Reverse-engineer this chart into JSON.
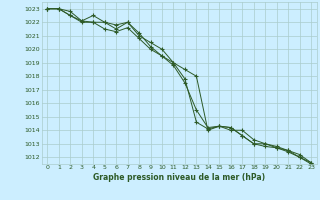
{
  "xlabel": "Graphe pression niveau de la mer (hPa)",
  "x": [
    0,
    1,
    2,
    3,
    4,
    5,
    6,
    7,
    8,
    9,
    10,
    11,
    12,
    13,
    14,
    15,
    16,
    17,
    18,
    19,
    20,
    21,
    22,
    23
  ],
  "line1": [
    1023,
    1023,
    1022.5,
    1022,
    1022,
    1022,
    1021.5,
    1022,
    1021,
    1020.5,
    1020,
    1019,
    1018.5,
    1018,
    1014,
    1014.3,
    1014,
    1014,
    1013.3,
    1013,
    1012.7,
    1012.5,
    1012.2,
    1011.6
  ],
  "line2": [
    1023,
    1023,
    1022.5,
    1022.1,
    1022.5,
    1022,
    1021.8,
    1022,
    1021.2,
    1020.2,
    1019.5,
    1018.8,
    1017.5,
    1015.5,
    1014.2,
    1014.3,
    1014.2,
    1013.6,
    1013,
    1012.8,
    1012.7,
    1012.4,
    1012,
    1011.6
  ],
  "line3": [
    1023,
    1023,
    1022.8,
    1022.1,
    1022,
    1021.5,
    1021.3,
    1021.6,
    1020.8,
    1020,
    1019.5,
    1019,
    1017.8,
    1014.6,
    1014.1,
    1014.3,
    1014.2,
    1013.6,
    1013,
    1013,
    1012.8,
    1012.5,
    1012,
    1011.5
  ],
  "line_color": "#2d5a27",
  "bg_color": "#cceeff",
  "grid_color": "#aacccc",
  "text_color": "#2d5a27",
  "ylim_min": 1011.5,
  "ylim_max": 1023.5,
  "yticks": [
    1012,
    1013,
    1014,
    1015,
    1016,
    1017,
    1018,
    1019,
    1020,
    1021,
    1022,
    1023
  ],
  "xticks": [
    0,
    1,
    2,
    3,
    4,
    5,
    6,
    7,
    8,
    9,
    10,
    11,
    12,
    13,
    14,
    15,
    16,
    17,
    18,
    19,
    20,
    21,
    22,
    23
  ]
}
